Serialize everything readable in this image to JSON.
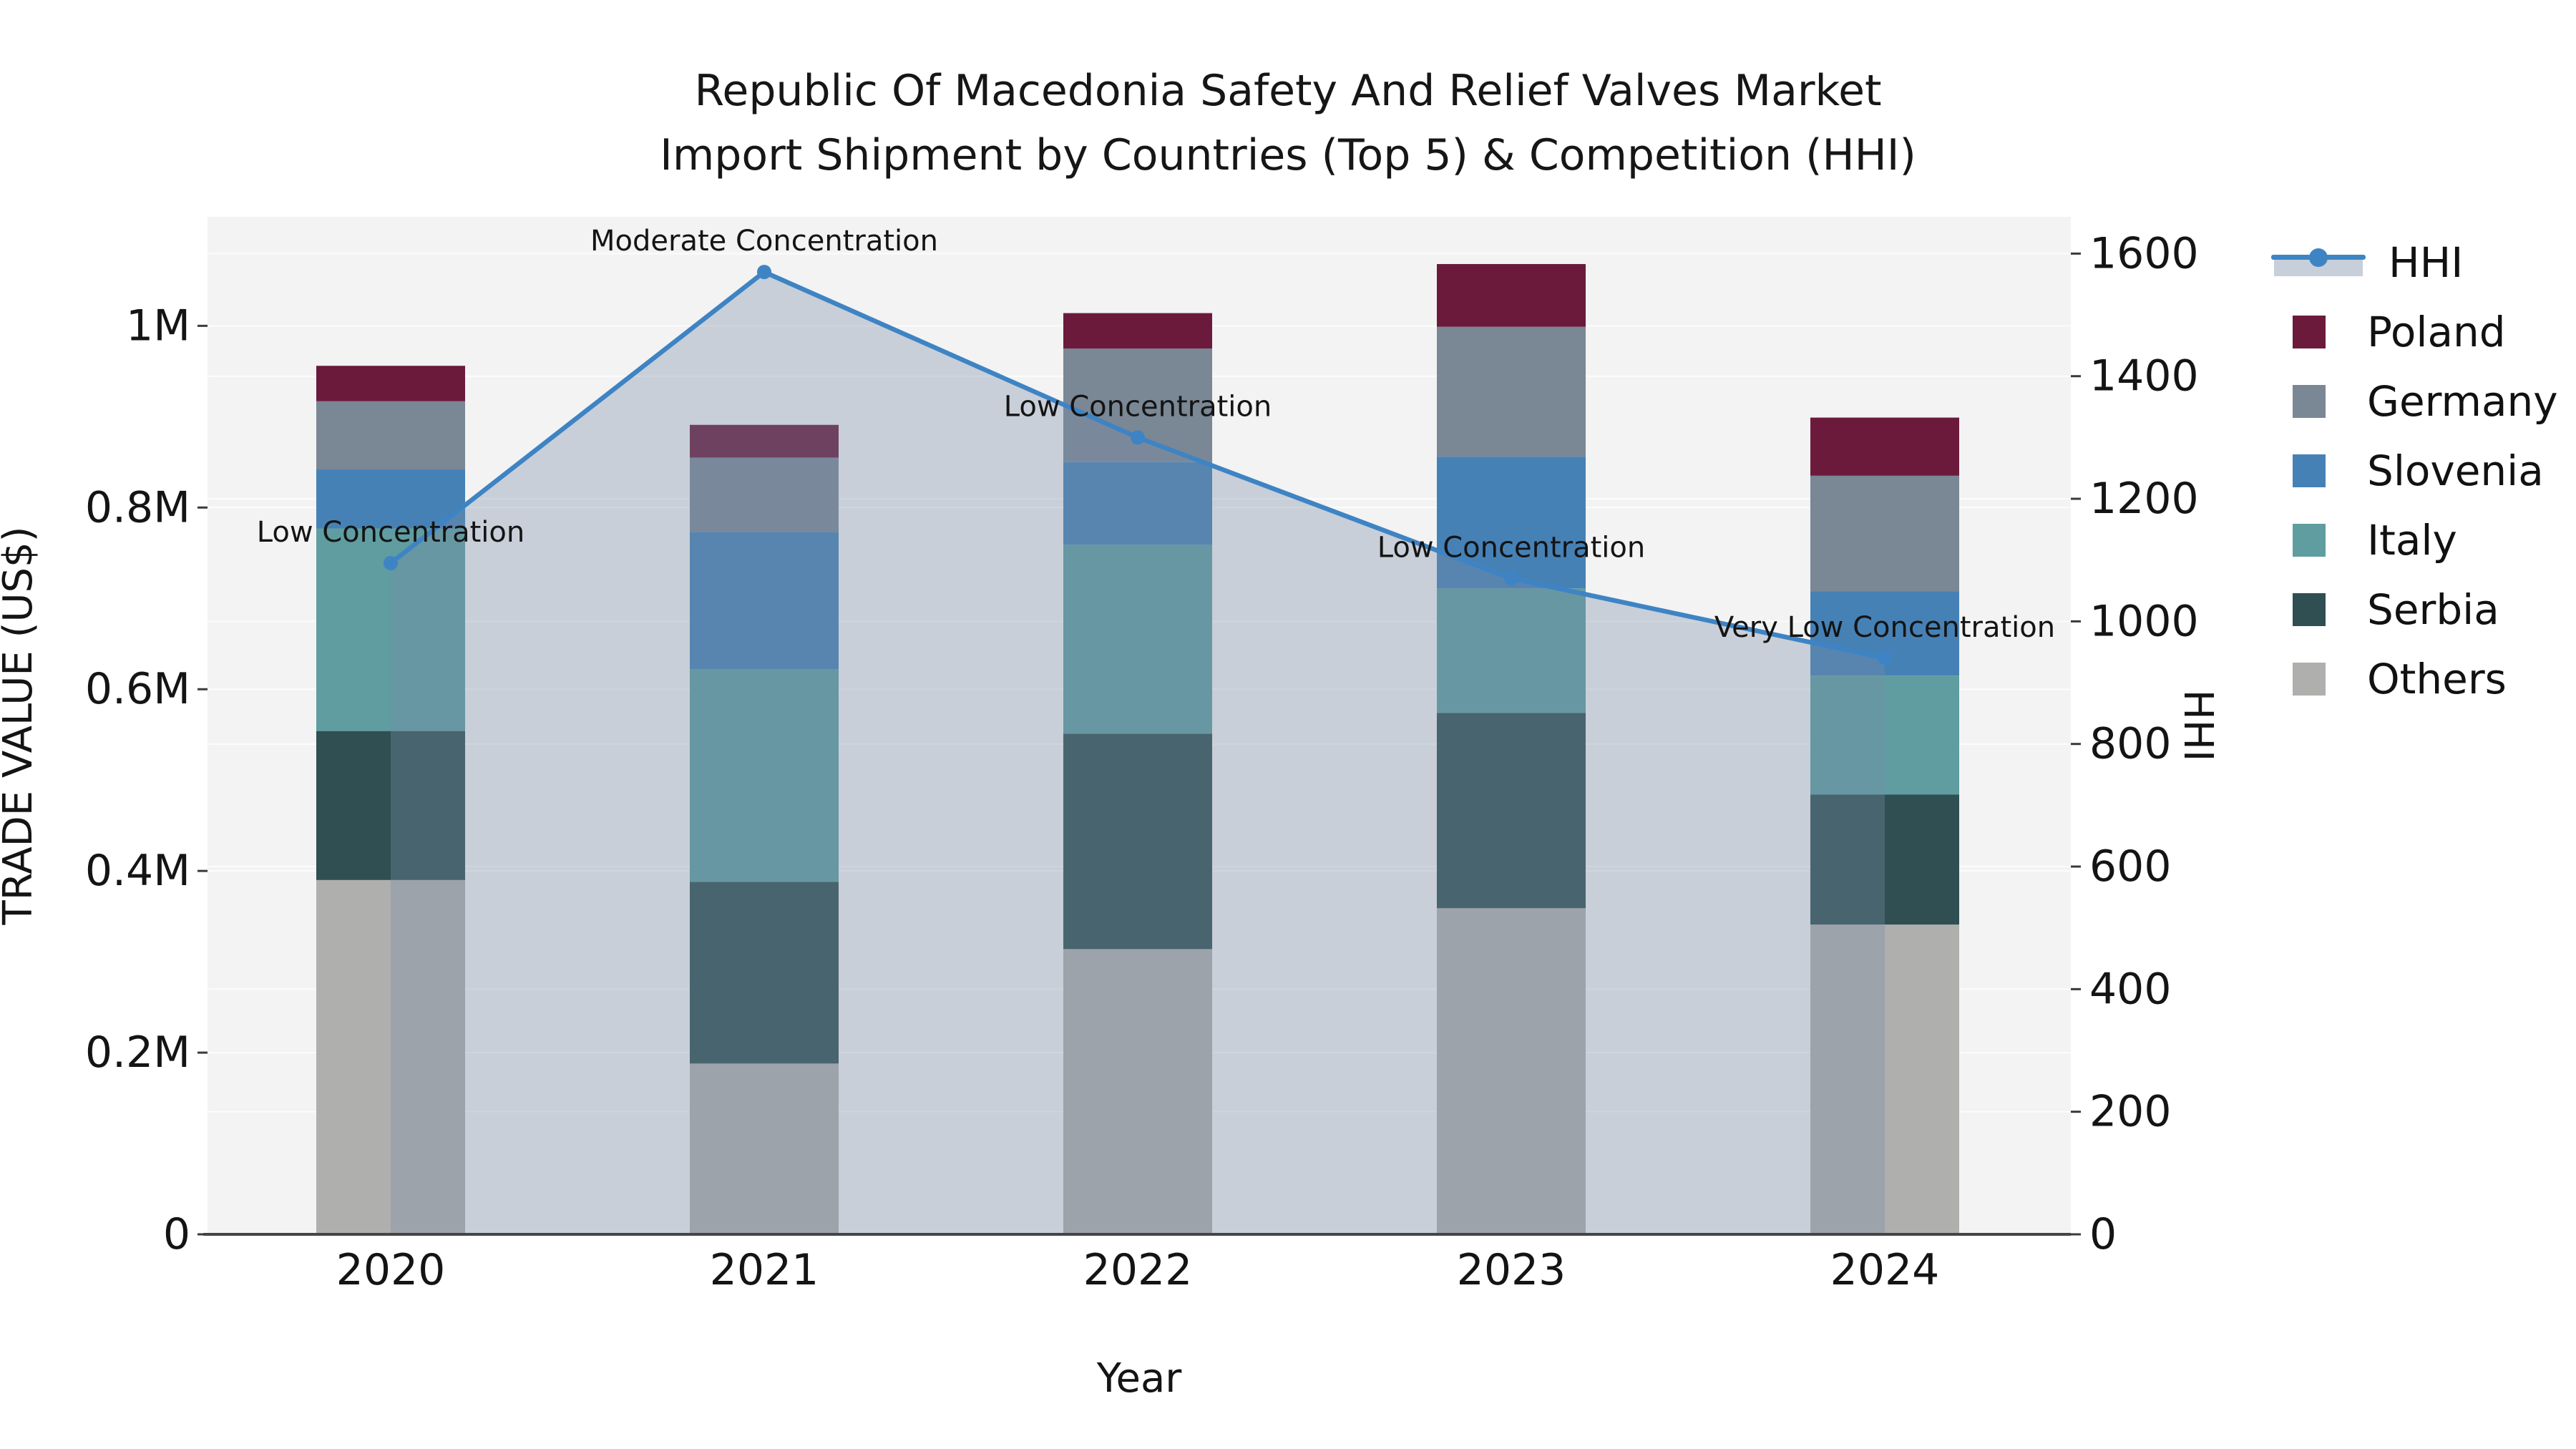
{
  "title": {
    "line1": "Republic Of Macedonia Safety And Relief Valves Market",
    "line2": "Import Shipment by Countries (Top 5) & Competition (HHI)"
  },
  "chart_data": {
    "type": "bar",
    "subtype": "stacked-bars-with-hhi-line-overlay",
    "categories": [
      "2020",
      "2021",
      "2022",
      "2023",
      "2024"
    ],
    "series": [
      {
        "name": "Others",
        "color": "#AFAFAD",
        "values": [
          390000,
          188000,
          314000,
          359000,
          341000
        ]
      },
      {
        "name": "Serbia",
        "color": "#2F4F52",
        "values": [
          164000,
          200000,
          237000,
          215000,
          143000
        ]
      },
      {
        "name": "Italy",
        "color": "#5F9DA0",
        "values": [
          223000,
          234000,
          208000,
          137000,
          131000
        ]
      },
      {
        "name": "Slovenia",
        "color": "#4681B6",
        "values": [
          65000,
          151000,
          91000,
          145000,
          93000
        ]
      },
      {
        "name": "Germany",
        "color": "#7A8795",
        "values": [
          75000,
          82000,
          125000,
          143000,
          127000
        ]
      },
      {
        "name": "Poland",
        "color": "#6B1A3C",
        "values": [
          39000,
          36000,
          39000,
          69000,
          64000
        ]
      }
    ],
    "line_series": {
      "name": "HHI",
      "color": "#3E84C4",
      "fill_color": "#788CA5",
      "fill_opacity": 0.35,
      "values": [
        1095,
        1570,
        1300,
        1070,
        940
      ],
      "annotations": [
        "Low Concentration",
        "Moderate Concentration",
        "Low Concentration",
        "Low Concentration",
        "Very Low Concentration"
      ]
    },
    "xlabel": "Year",
    "y_left": {
      "label": "TRADE VALUE (US$)",
      "max": 1120000,
      "tick_values": [
        0,
        200000,
        400000,
        600000,
        800000,
        1000000
      ],
      "tick_labels": [
        "0",
        "0.2M",
        "0.4M",
        "0.6M",
        "0.8M",
        "1M"
      ]
    },
    "y_right": {
      "label": "HHI",
      "max": 1660,
      "tick_values": [
        0,
        200,
        400,
        600,
        800,
        1000,
        1200,
        1400,
        1600
      ],
      "tick_labels": [
        "0",
        "200",
        "400",
        "600",
        "800",
        "1000",
        "1200",
        "1400",
        "1600"
      ]
    },
    "grid": true,
    "legend_position": "right",
    "plot_bg": "#F3F3F3",
    "grid_color": "#FFFFFF",
    "spine_color": "#454545"
  },
  "legend": {
    "items": [
      {
        "label": "HHI",
        "type": "line",
        "color": "#3E84C4"
      },
      {
        "label": "Poland",
        "type": "swatch",
        "color": "#6B1A3C"
      },
      {
        "label": "Germany",
        "type": "swatch",
        "color": "#7A8795"
      },
      {
        "label": "Slovenia",
        "type": "swatch",
        "color": "#4681B6"
      },
      {
        "label": "Italy",
        "type": "swatch",
        "color": "#5F9DA0"
      },
      {
        "label": "Serbia",
        "type": "swatch",
        "color": "#2F4F52"
      },
      {
        "label": "Others",
        "type": "swatch",
        "color": "#AFAFAD"
      }
    ]
  }
}
